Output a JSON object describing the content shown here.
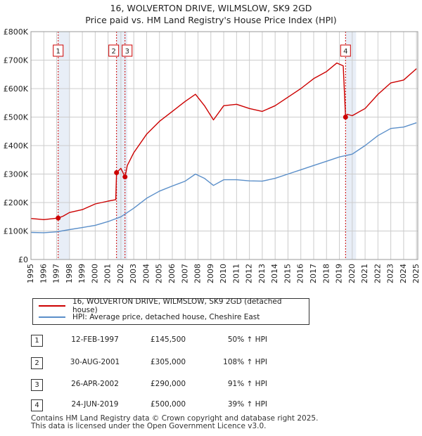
{
  "title_line1": "16, WOLVERTON DRIVE, WILMSLOW, SK9 2GD",
  "title_line2": "Price paid vs. HM Land Registry's House Price Index (HPI)",
  "colors": {
    "property": "#cc0000",
    "hpi": "#5b8fc9",
    "shade": "#e8eef7",
    "grid": "#cccccc"
  },
  "legend": {
    "property": "16, WOLVERTON DRIVE, WILMSLOW, SK9 2GD (detached house)",
    "hpi": "HPI: Average price, detached house, Cheshire East"
  },
  "transactions": [
    {
      "num": "1",
      "date": "12-FEB-1997",
      "price": "£145,500",
      "hpi": "50% ↑ HPI"
    },
    {
      "num": "2",
      "date": "30-AUG-2001",
      "price": "£305,000",
      "hpi": "108% ↑ HPI"
    },
    {
      "num": "3",
      "date": "26-APR-2002",
      "price": "£290,000",
      "hpi": "91% ↑ HPI"
    },
    {
      "num": "4",
      "date": "24-JUN-2019",
      "price": "£500,000",
      "hpi": "39% ↑ HPI"
    }
  ],
  "footer_line1": "Contains HM Land Registry data © Crown copyright and database right 2025.",
  "footer_line2": "This data is licensed under the Open Government Licence v3.0.",
  "chart_data": {
    "type": "line",
    "title": "16, WOLVERTON DRIVE, WILMSLOW, SK9 2GD — Price paid vs. HM Land Registry's House Price Index (HPI)",
    "xlim": [
      1995,
      2025.1
    ],
    "ylim": [
      0,
      800000
    ],
    "x_ticks": [
      "1995",
      "1996",
      "1997",
      "1998",
      "1999",
      "2000",
      "2001",
      "2002",
      "2003",
      "2004",
      "2005",
      "2006",
      "2007",
      "2008",
      "2009",
      "2010",
      "2011",
      "2012",
      "2013",
      "2014",
      "2015",
      "2016",
      "2017",
      "2018",
      "2019",
      "2020",
      "2021",
      "2022",
      "2023",
      "2024",
      "2025"
    ],
    "y_ticks": [
      {
        "value": 0,
        "label": "£0"
      },
      {
        "value": 100000,
        "label": "£100K"
      },
      {
        "value": 200000,
        "label": "£200K"
      },
      {
        "value": 300000,
        "label": "£300K"
      },
      {
        "value": 400000,
        "label": "£400K"
      },
      {
        "value": 500000,
        "label": "£500K"
      },
      {
        "value": 600000,
        "label": "£600K"
      },
      {
        "value": 700000,
        "label": "£700K"
      },
      {
        "value": 800000,
        "label": "£800K"
      }
    ],
    "series": [
      {
        "name": "16, WOLVERTON DRIVE, WILMSLOW, SK9 2GD (detached house)",
        "x": [
          1995,
          1996,
          1997.12,
          1997.5,
          1998,
          1999,
          2000,
          2001,
          2001.6,
          2001.66,
          2002,
          2002.32,
          2002.5,
          2003,
          2004,
          2005,
          2006,
          2007,
          2007.8,
          2008.5,
          2009.2,
          2010,
          2011,
          2012,
          2013,
          2014,
          2015,
          2016,
          2017,
          2018,
          2018.8,
          2019.3,
          2019.48,
          2019.6,
          2020,
          2021,
          2022,
          2023,
          2024,
          2025
        ],
        "values": [
          144000,
          140000,
          145500,
          152000,
          165000,
          175000,
          195000,
          205000,
          210000,
          305000,
          320000,
          290000,
          330000,
          375000,
          440000,
          485000,
          520000,
          555000,
          580000,
          540000,
          490000,
          540000,
          545000,
          530000,
          520000,
          540000,
          570000,
          600000,
          635000,
          660000,
          690000,
          680000,
          500000,
          510000,
          505000,
          530000,
          580000,
          620000,
          630000,
          670000
        ]
      },
      {
        "name": "HPI: Average price, detached house, Cheshire East",
        "x": [
          1995,
          1996,
          1997,
          1998,
          1999,
          2000,
          2001,
          2002,
          2003,
          2004,
          2005,
          2006,
          2007,
          2007.8,
          2008.5,
          2009.2,
          2010,
          2011,
          2012,
          2013,
          2014,
          2015,
          2016,
          2017,
          2018,
          2019,
          2020,
          2021,
          2022,
          2023,
          2024,
          2025
        ],
        "values": [
          95000,
          94000,
          97000,
          105000,
          112000,
          120000,
          133000,
          150000,
          180000,
          215000,
          240000,
          258000,
          275000,
          300000,
          285000,
          260000,
          280000,
          280000,
          276000,
          275000,
          285000,
          300000,
          315000,
          330000,
          345000,
          360000,
          370000,
          400000,
          435000,
          460000,
          465000,
          480000
        ]
      }
    ],
    "sales": [
      {
        "label": "1",
        "x": 1997.12,
        "y": 145500
      },
      {
        "label": "2",
        "x": 2001.66,
        "y": 305000
      },
      {
        "label": "3",
        "x": 2002.32,
        "y": 290000
      },
      {
        "label": "4",
        "x": 2019.48,
        "y": 500000
      }
    ],
    "shaded_ranges": [
      [
        1997.12,
        1998.0
      ],
      [
        2001.66,
        2002.5
      ],
      [
        2019.48,
        2020.3
      ]
    ]
  }
}
